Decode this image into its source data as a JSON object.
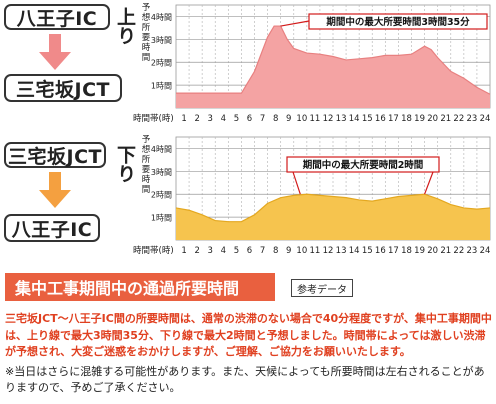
{
  "top": {
    "from": "八王子IC",
    "to": "三宅坂JCT",
    "direction": "上り",
    "annotation": "期間中の最大所要時間3時間35分",
    "ylabel": "予想所要時間",
    "xlabel": "時間帯(時)"
  },
  "bottom": {
    "from": "三宅坂JCT",
    "to": "八王子IC",
    "direction": "下り",
    "annotation": "期間中の最大所要時間2時間",
    "ylabel": "予想所要時間",
    "xlabel": "時間帯(時)"
  },
  "section": {
    "title": "集中工事期間中の通過所要時間",
    "reference": "参考データ",
    "description": "三宅坂JCT～八王子IC間の所要時間は、通常の渋滞のない場合で40分程度ですが、集中工事期間中は、上り線で最大3時間35分、下り線で最大2時間と予想しました。時間帯によっては激しい渋滞が予想され、大変ご迷惑をおかけしますが、ご理解、ご協力をお願いいたします。",
    "note": "※当日はさらに混雑する可能性があります。また、天候によっても所要時間は左右されることがありますので、予めご了承ください。"
  },
  "colors": {
    "up_fill": "#f4a3a3",
    "up_stroke": "#e88080",
    "down_fill": "#f6c44e",
    "down_stroke": "#e4a820",
    "arrow_up": "#f08a8a",
    "arrow_down": "#f4a040",
    "banner": "#e9603f",
    "annotation_border": "#d21b1b"
  },
  "chart_data": [
    {
      "type": "area",
      "title": "上り",
      "xlabel": "時間帯(時)",
      "ylabel": "予想所要時間",
      "x_ticks": [
        "1",
        "2",
        "3",
        "4",
        "5",
        "6",
        "7",
        "8",
        "9",
        "10",
        "11",
        "12",
        "13",
        "14",
        "15",
        "16",
        "17",
        "18",
        "19",
        "20",
        "21",
        "22",
        "23",
        "24"
      ],
      "y_ticks": [
        "1時間",
        "2時間",
        "3時間",
        "4時間"
      ],
      "ylim": [
        0,
        4.5
      ],
      "xlim": [
        0,
        24
      ],
      "x": [
        0,
        1,
        2,
        3,
        4,
        5,
        6,
        7,
        7.5,
        8,
        8.5,
        9,
        10,
        11,
        12,
        13,
        14,
        15,
        16,
        17,
        18,
        19,
        19.5,
        20,
        21,
        22,
        23,
        24
      ],
      "values": [
        0.65,
        0.65,
        0.65,
        0.65,
        0.65,
        0.65,
        1.6,
        3.1,
        3.58,
        3.58,
        3.0,
        2.6,
        2.4,
        2.35,
        2.25,
        2.1,
        2.15,
        2.2,
        2.3,
        2.3,
        2.35,
        2.7,
        2.55,
        2.2,
        1.6,
        1.3,
        0.9,
        0.6
      ],
      "annotation": "期間中の最大所要時間3時間35分",
      "grid": true
    },
    {
      "type": "area",
      "title": "下り",
      "xlabel": "時間帯(時)",
      "ylabel": "予想所要時間",
      "x_ticks": [
        "1",
        "2",
        "3",
        "4",
        "5",
        "6",
        "7",
        "8",
        "9",
        "10",
        "11",
        "12",
        "13",
        "14",
        "15",
        "16",
        "17",
        "18",
        "19",
        "20",
        "21",
        "22",
        "23",
        "24"
      ],
      "y_ticks": [
        "1時間",
        "2時間",
        "3時間",
        "4時間"
      ],
      "ylim": [
        0,
        4.5
      ],
      "xlim": [
        0,
        24
      ],
      "x": [
        0,
        1,
        2,
        3,
        4,
        5,
        6,
        7,
        8,
        9,
        10,
        11,
        12,
        13,
        14,
        15,
        16,
        17,
        18,
        19,
        20,
        21,
        22,
        23,
        24
      ],
      "values": [
        1.4,
        1.3,
        1.1,
        0.85,
        0.8,
        0.8,
        1.1,
        1.6,
        1.85,
        1.95,
        2.0,
        1.95,
        1.9,
        1.85,
        1.75,
        1.7,
        1.8,
        1.9,
        1.95,
        2.0,
        1.8,
        1.55,
        1.4,
        1.35,
        1.4
      ],
      "annotation": "期間中の最大所要時間2時間",
      "grid": true
    }
  ]
}
